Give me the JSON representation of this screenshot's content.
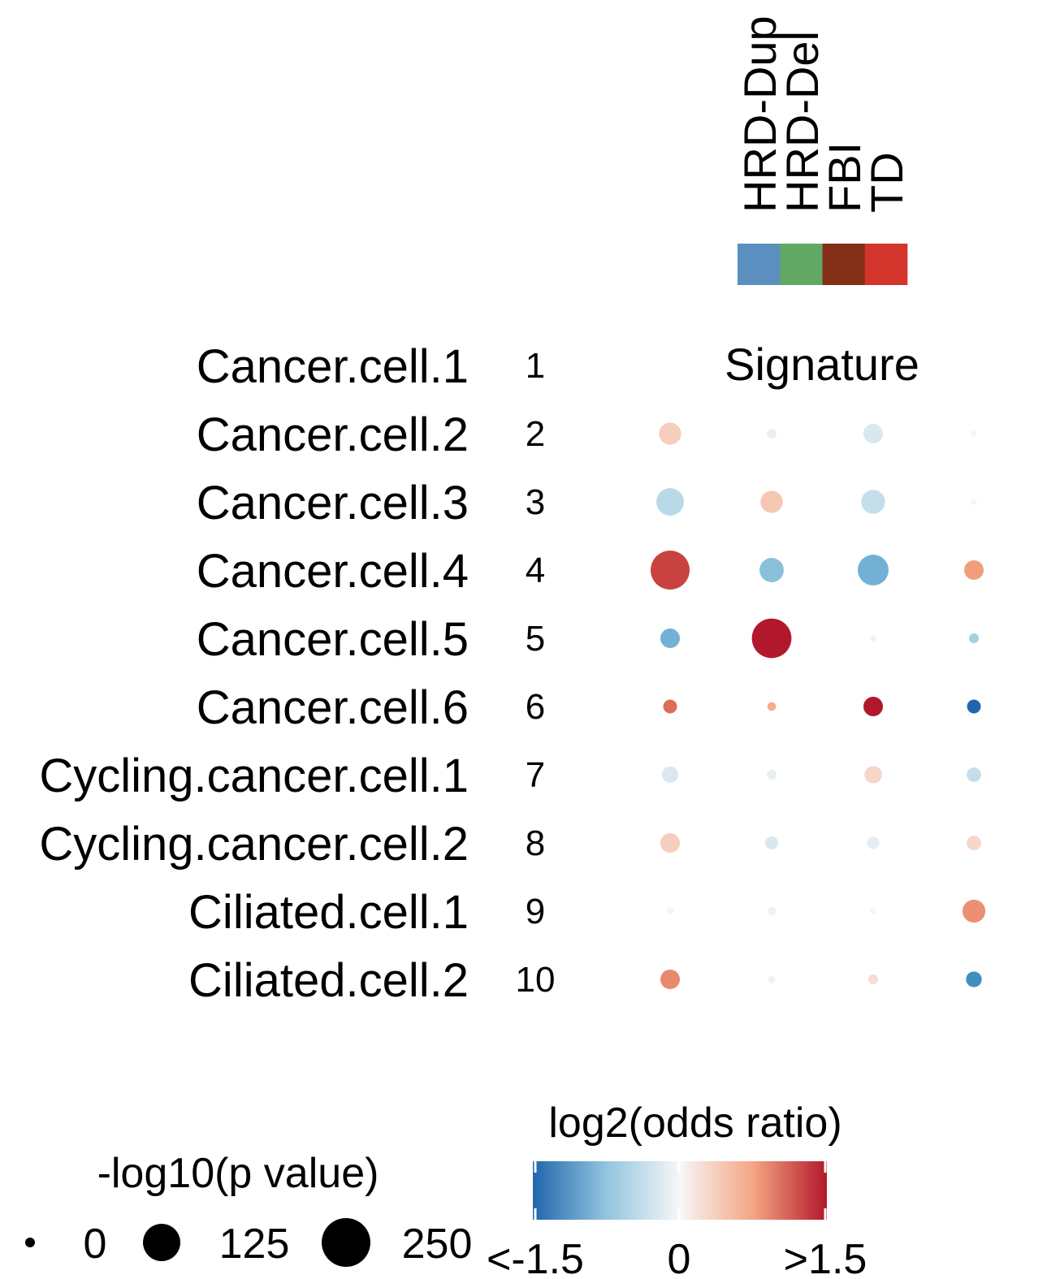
{
  "chart_data": {
    "type": "dot-matrix",
    "column_header_title": "Signature",
    "columns": [
      {
        "label": "HRD-Dup",
        "color": "#5b8fc0"
      },
      {
        "label": "HRD-Del",
        "color": "#62a865"
      },
      {
        "label": "FBI",
        "color": "#832f18"
      },
      {
        "label": "TD",
        "color": "#d3352c"
      }
    ],
    "rows": [
      {
        "label": "Cancer.cell.1",
        "number": "1"
      },
      {
        "label": "Cancer.cell.2",
        "number": "2"
      },
      {
        "label": "Cancer.cell.3",
        "number": "3"
      },
      {
        "label": "Cancer.cell.4",
        "number": "4"
      },
      {
        "label": "Cancer.cell.5",
        "number": "5"
      },
      {
        "label": "Cancer.cell.6",
        "number": "6"
      },
      {
        "label": "Cycling.cancer.cell.1",
        "number": "7"
      },
      {
        "label": "Cycling.cancer.cell.2",
        "number": "8"
      },
      {
        "label": "Ciliated.cell.1",
        "number": "9"
      },
      {
        "label": "Ciliated.cell.2",
        "number": "10"
      }
    ],
    "points": [
      {
        "row": 1,
        "col": 0,
        "log2_or": 0.25,
        "neglog10_p": 52
      },
      {
        "row": 1,
        "col": 1,
        "log2_or": -0.08,
        "neglog10_p": 10
      },
      {
        "row": 1,
        "col": 2,
        "log2_or": -0.15,
        "neglog10_p": 40
      },
      {
        "row": 1,
        "col": 3,
        "log2_or": -0.02,
        "neglog10_p": 4
      },
      {
        "row": 2,
        "col": 0,
        "log2_or": -0.3,
        "neglog10_p": 80
      },
      {
        "row": 2,
        "col": 1,
        "log2_or": 0.3,
        "neglog10_p": 52
      },
      {
        "row": 2,
        "col": 2,
        "log2_or": -0.25,
        "neglog10_p": 60
      },
      {
        "row": 2,
        "col": 3,
        "log2_or": -0.02,
        "neglog10_p": 4
      },
      {
        "row": 3,
        "col": 0,
        "log2_or": 1.2,
        "neglog10_p": 160
      },
      {
        "row": 3,
        "col": 1,
        "log2_or": -0.55,
        "neglog10_p": 62
      },
      {
        "row": 3,
        "col": 2,
        "log2_or": -0.7,
        "neglog10_p": 100
      },
      {
        "row": 3,
        "col": 3,
        "log2_or": 0.55,
        "neglog10_p": 40
      },
      {
        "row": 4,
        "col": 0,
        "log2_or": -0.7,
        "neglog10_p": 40
      },
      {
        "row": 4,
        "col": 1,
        "log2_or": 1.5,
        "neglog10_p": 165
      },
      {
        "row": 4,
        "col": 2,
        "log2_or": -0.05,
        "neglog10_p": 4
      },
      {
        "row": 4,
        "col": 3,
        "log2_or": -0.4,
        "neglog10_p": 10
      },
      {
        "row": 5,
        "col": 0,
        "log2_or": 0.9,
        "neglog10_p": 20
      },
      {
        "row": 5,
        "col": 1,
        "log2_or": 0.45,
        "neglog10_p": 8
      },
      {
        "row": 5,
        "col": 2,
        "log2_or": 1.5,
        "neglog10_p": 40
      },
      {
        "row": 5,
        "col": 3,
        "log2_or": -1.5,
        "neglog10_p": 20
      },
      {
        "row": 6,
        "col": 0,
        "log2_or": -0.15,
        "neglog10_p": 28
      },
      {
        "row": 6,
        "col": 1,
        "log2_or": -0.08,
        "neglog10_p": 10
      },
      {
        "row": 6,
        "col": 2,
        "log2_or": 0.2,
        "neglog10_p": 32
      },
      {
        "row": 6,
        "col": 3,
        "log2_or": -0.25,
        "neglog10_p": 22
      },
      {
        "row": 7,
        "col": 0,
        "log2_or": 0.25,
        "neglog10_p": 40
      },
      {
        "row": 7,
        "col": 1,
        "log2_or": -0.15,
        "neglog10_p": 18
      },
      {
        "row": 7,
        "col": 2,
        "log2_or": -0.1,
        "neglog10_p": 16
      },
      {
        "row": 7,
        "col": 3,
        "log2_or": 0.2,
        "neglog10_p": 22
      },
      {
        "row": 8,
        "col": 0,
        "log2_or": 0.02,
        "neglog10_p": 5
      },
      {
        "row": 8,
        "col": 1,
        "log2_or": -0.05,
        "neglog10_p": 8
      },
      {
        "row": 8,
        "col": 2,
        "log2_or": -0.02,
        "neglog10_p": 4
      },
      {
        "row": 8,
        "col": 3,
        "log2_or": 0.65,
        "neglog10_p": 55
      },
      {
        "row": 9,
        "col": 0,
        "log2_or": 0.7,
        "neglog10_p": 40
      },
      {
        "row": 9,
        "col": 1,
        "log2_or": -0.05,
        "neglog10_p": 5
      },
      {
        "row": 9,
        "col": 2,
        "log2_or": 0.15,
        "neglog10_p": 10
      },
      {
        "row": 9,
        "col": 3,
        "log2_or": -1.05,
        "neglog10_p": 26
      }
    ],
    "size_legend": {
      "title": "-log10(p value)",
      "breaks": [
        {
          "value": 0,
          "label": "0"
        },
        {
          "value": 125,
          "label": "125"
        },
        {
          "value": 250,
          "label": "250"
        }
      ]
    },
    "color_legend": {
      "title": "log2(odds ratio)",
      "min": -1.5,
      "max": 1.5,
      "low_color": "#2166ac",
      "mid_color": "#f7f7f7",
      "high_color": "#b2182b",
      "tick_labels": [
        "<-1.5",
        "0",
        ">1.5"
      ]
    }
  }
}
